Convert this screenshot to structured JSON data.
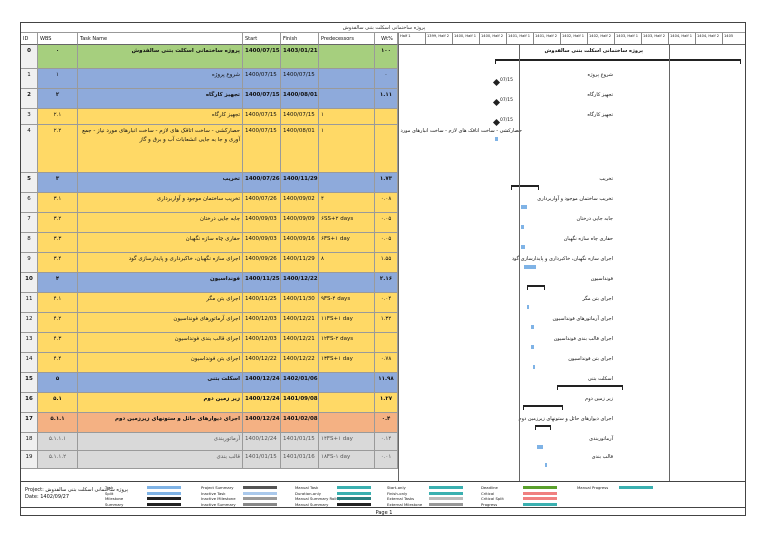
{
  "doc_title": "پروژه ساختمانی اسکلت بتنی سالفدوش",
  "columns": {
    "id": "ID",
    "wbs": "WBS",
    "name": "Task Name",
    "start": "Start",
    "finish": "Finish",
    "pred": "Predecessors",
    "weight": "Wt%"
  },
  "timeline_ticks": [
    "Half 1",
    "1399, Half 2",
    "1400, Half 1",
    "1400, Half 2",
    "1401, Half 1",
    "1401, Half 2",
    "1402, Half 1",
    "1402, Half 2",
    "1403, Half 1",
    "1403, Half 2",
    "1404, Half 1",
    "1404, Half 2",
    "1405"
  ],
  "rows": [
    {
      "id": "0",
      "wbs": "۰",
      "name": "پروژه ساختمانی اسکلت بتنی سالفدوش",
      "start": "1400/07/15",
      "finish": "1403/01/21",
      "pred": "",
      "wt": "۱۰۰",
      "type": "project"
    },
    {
      "id": "1",
      "wbs": "۱",
      "name": "شروع پروژه",
      "start": "1400/07/15",
      "finish": "1400/07/15",
      "pred": "",
      "wt": "۰",
      "type": "blue"
    },
    {
      "id": "2",
      "wbs": "۲",
      "name": "تجهیز کارگاه",
      "start": "1400/07/15",
      "finish": "1400/08/01",
      "pred": "",
      "wt": "۱.۱۱",
      "type": "summary"
    },
    {
      "id": "3",
      "wbs": "۲.۱",
      "name": "تجهیز کارگاه",
      "start": "1400/07/15",
      "finish": "1400/07/15",
      "pred": "۱",
      "wt": "",
      "type": "yellow"
    },
    {
      "id": "4",
      "wbs": "۲.۲",
      "name": "حصارکشی - ساخت اتاقک های لازم - ساخت انبارهای مورد نیاز - جمع آوری و جا به جایی انشعابات آب و برق و گاز",
      "start": "1400/07/15",
      "finish": "1400/08/01",
      "pred": "۱",
      "wt": "",
      "type": "yellow"
    },
    {
      "id": "5",
      "wbs": "۳",
      "name": "تخریب",
      "start": "1400/07/26",
      "finish": "1400/11/29",
      "pred": "",
      "wt": "۱.۷۳",
      "type": "summary"
    },
    {
      "id": "6",
      "wbs": "۳.۱",
      "name": "تخریب ساختمان موجود و آواربرداری",
      "start": "1400/07/26",
      "finish": "1400/09/02",
      "pred": "۴",
      "wt": "۰.۰۸",
      "type": "yellow"
    },
    {
      "id": "7",
      "wbs": "۳.۲",
      "name": "جابه جایی درختان",
      "start": "1400/09/03",
      "finish": "1400/09/09",
      "pred": "۶SS+۲ days",
      "wt": "۰.۰۵",
      "type": "yellow"
    },
    {
      "id": "8",
      "wbs": "۳.۳",
      "name": "حفاری چاه سازه نگهبان",
      "start": "1400/09/03",
      "finish": "1400/09/16",
      "pred": "۶FS+۱ day",
      "wt": "۰.۰۵",
      "type": "yellow"
    },
    {
      "id": "9",
      "wbs": "۳.۴",
      "name": "اجرای سازه نگهبان، خاکبرداری و پایدارسازی گود",
      "start": "1400/09/26",
      "finish": "1400/11/29",
      "pred": "۸",
      "wt": "۱.۵۵",
      "type": "yellow"
    },
    {
      "id": "10",
      "wbs": "۴",
      "name": "فونداسیون",
      "start": "1400/11/25",
      "finish": "1400/12/22",
      "pred": "",
      "wt": "۲.۱۶",
      "type": "summary"
    },
    {
      "id": "11",
      "wbs": "۴.۱",
      "name": "اجرای بتن مگر",
      "start": "1400/11/25",
      "finish": "1400/11/30",
      "pred": "۹FS-۴ days",
      "wt": "۰.۰۴",
      "type": "yellow"
    },
    {
      "id": "12",
      "wbs": "۴.۲",
      "name": "اجرای آرماتورهای فونداسیون",
      "start": "1400/12/03",
      "finish": "1400/12/21",
      "pred": "۱۱FS+۱ day",
      "wt": "۱.۳۲",
      "type": "yellow"
    },
    {
      "id": "13",
      "wbs": "۴.۳",
      "name": "اجرای قالب بندی فونداسیون",
      "start": "1400/12/03",
      "finish": "1400/12/21",
      "pred": "۱۲FS-۲ days",
      "wt": "",
      "type": "yellow"
    },
    {
      "id": "14",
      "wbs": "۴.۴",
      "name": "اجرای بتن فونداسیون",
      "start": "1400/12/22",
      "finish": "1400/12/22",
      "pred": "۱۳FS+۱ day",
      "wt": "۰.۷۸",
      "type": "yellow"
    },
    {
      "id": "15",
      "wbs": "۵",
      "name": "اسکلت بتنی",
      "start": "1400/12/24",
      "finish": "1402/01/06",
      "pred": "",
      "wt": "۱۱.۹۸",
      "type": "summary"
    },
    {
      "id": "16",
      "wbs": "۵.۱",
      "name": "زیر زمین دوم",
      "start": "1400/12/24",
      "finish": "1401/09/08",
      "pred": "",
      "wt": "۱.۲۷",
      "type": "summary2"
    },
    {
      "id": "17",
      "wbs": "۵.۱.۱",
      "name": "اجرای دیوارهای حائل و ستونهای زیرزمین دوم",
      "start": "1400/12/24",
      "finish": "1401/02/08",
      "pred": "",
      "wt": "۰.۴",
      "type": "summary3"
    },
    {
      "id": "18",
      "wbs": "۵.۱.۱.۱",
      "name": "آرماتوربندی",
      "start": "1400/12/24",
      "finish": "1401/01/15",
      "pred": "۱۴FS+۱ day",
      "wt": "۰.۱۴",
      "type": "grey"
    },
    {
      "id": "19",
      "wbs": "۵.۱.۱.۲",
      "name": "قالب بندی",
      "start": "1401/01/15",
      "finish": "1401/01/16",
      "pred": "۱۸FS-۱ day",
      "wt": "۰.۰۱",
      "type": "grey"
    }
  ],
  "gantt": [
    {
      "label": "پروژه ساختمانی اسکلت بتنی سالفدوش",
      "kind": "none"
    },
    {
      "label": "شروع پروژه",
      "date": "07/15",
      "kind": "milestone"
    },
    {
      "label": "تجهیز کارگاه",
      "date": "07/15",
      "kind": "milestone"
    },
    {
      "label": "تجهیز کارگاه",
      "date": "07/15",
      "kind": "milestone"
    },
    {
      "label": "حصارکشی - ساخت اتاقک های لازم - ساخت انبارهای مورد نیاز - جمع آوری و جا به جایی انشعابات آب و برق و گاز",
      "kind": "bar"
    },
    {
      "label": "تخریب",
      "kind": "summary"
    },
    {
      "label": "تخریب ساختمان موجود و آواربرداری",
      "kind": "bar"
    },
    {
      "label": "جابه جایی درختان",
      "kind": "bar"
    },
    {
      "label": "حفاری چاه سازه نگهبان",
      "kind": "bar"
    },
    {
      "label": "اجرای سازه نگهبان، خاکبرداری و پایدارسازی گود",
      "kind": "bar"
    },
    {
      "label": "فونداسیون",
      "kind": "summary"
    },
    {
      "label": "اجرای بتن مگر",
      "kind": "bar"
    },
    {
      "label": "اجرای آرماتورهای فونداسیون",
      "kind": "bar"
    },
    {
      "label": "اجرای قالب بندی فونداسیون",
      "kind": "bar"
    },
    {
      "label": "اجرای بتن فونداسیون",
      "kind": "bar"
    },
    {
      "label": "اسکلت بتنی",
      "kind": "summary"
    },
    {
      "label": "زیر زمین دوم",
      "kind": "summary"
    },
    {
      "label": "اجرای دیوارهای حائل و ستونهای زیرزمین دوم",
      "kind": "summary"
    },
    {
      "label": "آرماتوربندی",
      "kind": "bar"
    },
    {
      "label": "قالب بندی",
      "kind": "bar"
    }
  ],
  "legend": {
    "project_label": "Project: پروژه ساختمانی اسکلت بتنی سالفدوش",
    "date_label": "Date: 1402/09/27",
    "items": [
      "Task",
      "Split",
      "Milestone",
      "Summary",
      "Project Summary",
      "Inactive Task",
      "Inactive Milestone",
      "Inactive Summary",
      "Manual Task",
      "Duration-only",
      "Manual Summary Rollup",
      "Manual Summary",
      "Start-only",
      "Finish-only",
      "External Tasks",
      "External Milestone",
      "Deadline",
      "Critical",
      "Critical Split",
      "Progress",
      "Manual Progress"
    ]
  },
  "footer": "Page 1",
  "colors": {
    "project": "#a6cf7e",
    "blue": "#8eaadb",
    "yellow": "#ffd966",
    "grey": "#d9d9d9"
  }
}
